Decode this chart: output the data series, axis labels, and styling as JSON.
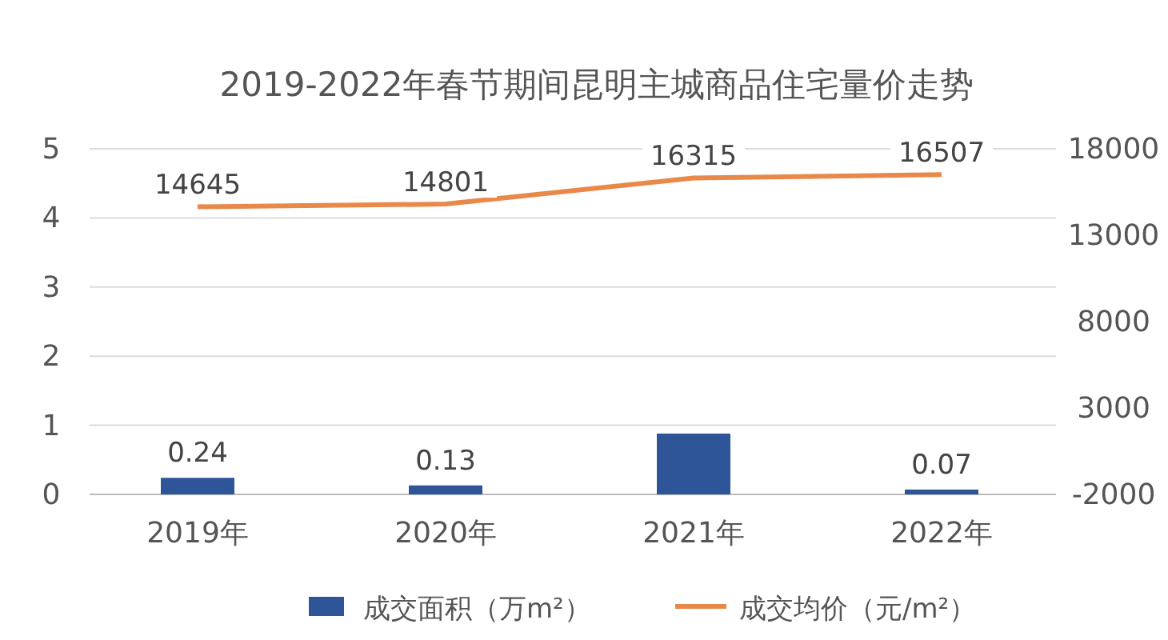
{
  "chart_data": {
    "type": "bar",
    "title": "2019-2022年春节期间昆明主城商品住宅量价走势",
    "categories": [
      "2019年",
      "2020年",
      "2021年",
      "2022年"
    ],
    "series": [
      {
        "name": "成交面积（万m²）",
        "color": "#2e5597",
        "values": [
          0.24,
          0.13,
          0.88,
          0.07
        ],
        "value_labels": [
          "0.24",
          "0.13",
          null,
          "0.07"
        ]
      },
      {
        "name": "成交均价（元/m²）",
        "type": "line",
        "axis": "y2",
        "color": "#e8894a",
        "values": [
          14645,
          14801,
          16315,
          16507
        ],
        "value_labels": [
          "14645",
          "14801",
          "16315",
          "16507"
        ]
      }
    ],
    "ylim": [
      0,
      5
    ],
    "yticks": [
      0,
      1,
      2,
      3,
      4,
      5
    ],
    "y2lim": [
      -2000,
      18000
    ],
    "y2ticks": [
      -2000,
      3000,
      8000,
      13000,
      18000
    ],
    "grid": "y",
    "legend": "bottom",
    "marker": "none",
    "line_style": "solid"
  }
}
